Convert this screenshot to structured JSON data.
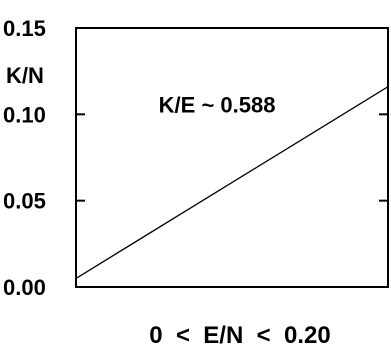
{
  "chart_data": {
    "type": "line",
    "title": "",
    "xlabel": "0  <  E/N  <  0.20",
    "ylabel": "K/N",
    "xlim": [
      0,
      0.2
    ],
    "ylim": [
      0,
      0.15
    ],
    "yticks": [
      0.0,
      0.05,
      0.1,
      0.15
    ],
    "ytick_labels": [
      "0.00",
      "0.05",
      "0.10",
      "0.15"
    ],
    "grid": false,
    "series": [
      {
        "x": [
          0.0,
          0.2
        ],
        "y": [
          0.005,
          0.116
        ]
      }
    ],
    "annotations": [
      {
        "text": "K/E ~ 0.588",
        "x": 0.053,
        "y": 0.101
      }
    ]
  },
  "colors": {
    "line": "#000000",
    "axes": "#000000",
    "background": "#ffffff"
  }
}
